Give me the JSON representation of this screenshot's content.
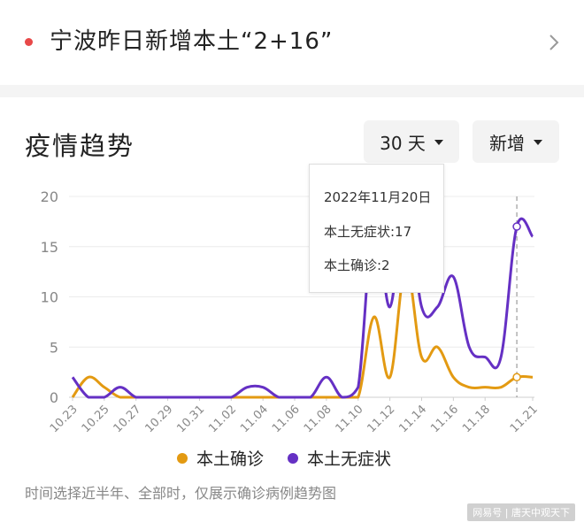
{
  "headline": {
    "title": "宁波昨日新增本土“2+16”"
  },
  "section": {
    "title": "疫情趋势"
  },
  "controls": {
    "days_label": "30 天",
    "metric_label": "新增"
  },
  "tooltip": {
    "date": "2022年11月20日",
    "asymptomatic_text": "本土无症状:17",
    "confirmed_text": "本土确诊:2"
  },
  "legend": {
    "confirmed": "本土确诊",
    "asymptomatic": "本土无症状"
  },
  "note": "时间选择近半年、全部时，仅展示确诊病例趋势图",
  "watermark": "网易号 | 唐天中观天下",
  "colors": {
    "confirmed": "#e39a12",
    "asymptomatic": "#6530c4",
    "bullet": "#e84848"
  },
  "chart_data": {
    "type": "line",
    "x": [
      "10.23",
      "10.24",
      "10.25",
      "10.26",
      "10.27",
      "10.28",
      "10.29",
      "10.30",
      "10.31",
      "11.01",
      "11.02",
      "11.03",
      "11.04",
      "11.05",
      "11.06",
      "11.07",
      "11.08",
      "11.09",
      "11.10",
      "11.11",
      "11.12",
      "11.13",
      "11.14",
      "11.15",
      "11.16",
      "11.17",
      "11.18",
      "11.19",
      "11.20",
      "11.21"
    ],
    "x_tick_labels": [
      "10.23",
      "10.25",
      "10.27",
      "10.29",
      "10.31",
      "11.02",
      "11.04",
      "11.06",
      "11.08",
      "11.10",
      "11.12",
      "11.14",
      "11.16",
      "11.18",
      "11.21"
    ],
    "y_ticks": [
      0,
      5,
      10,
      15,
      20
    ],
    "ylim": [
      0,
      20
    ],
    "series": [
      {
        "name": "本土确诊",
        "values": [
          0,
          2,
          1,
          0,
          0,
          0,
          0,
          0,
          0,
          0,
          0,
          0,
          0,
          0,
          0,
          0,
          0,
          0,
          0,
          8,
          2,
          13,
          4,
          5,
          2,
          1,
          1,
          1,
          2,
          2
        ]
      },
      {
        "name": "本土无症状",
        "values": [
          2,
          0,
          0,
          1,
          0,
          0,
          0,
          0,
          0,
          0,
          0,
          1,
          1,
          0,
          0,
          0,
          2,
          0,
          1,
          18,
          9,
          20,
          9,
          9,
          12,
          5,
          4,
          4,
          17,
          16
        ]
      }
    ],
    "highlight_index": 28,
    "grid": "horizontal"
  }
}
